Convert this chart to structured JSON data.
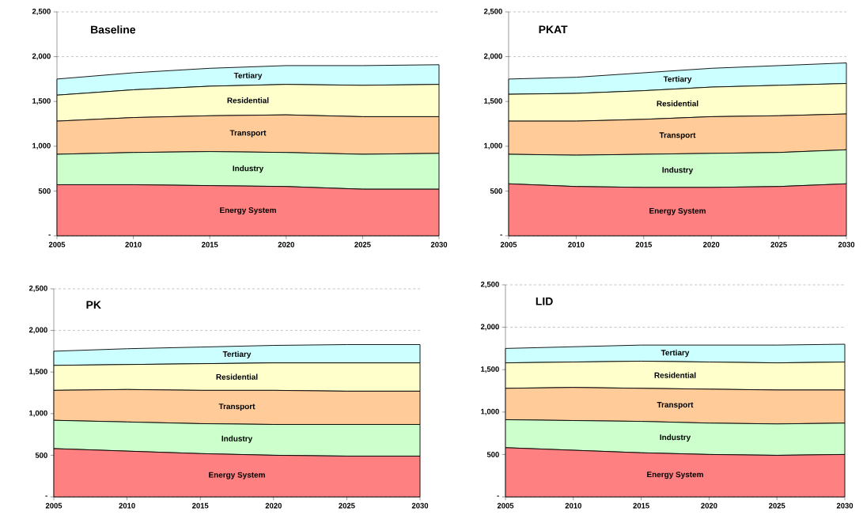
{
  "chart_data": [
    {
      "type": "area",
      "stacked": true,
      "title": "Baseline",
      "x": [
        2005,
        2010,
        2015,
        2020,
        2025,
        2030
      ],
      "xlim": [
        2005,
        2030
      ],
      "xticks": [
        2005,
        2010,
        2015,
        2020,
        2025,
        2030
      ],
      "ylim": [
        0,
        2500
      ],
      "yticks": [
        {
          "value": 0,
          "label": "-"
        },
        {
          "value": 500,
          "label": "500"
        },
        {
          "value": 1000,
          "label": "1,000"
        },
        {
          "value": 1500,
          "label": "1,500"
        },
        {
          "value": 2000,
          "label": "2,000"
        },
        {
          "value": 2500,
          "label": "2,500"
        }
      ],
      "grid": "y",
      "series": [
        {
          "name": "Energy System",
          "color": "#ff8080",
          "values": [
            570,
            570,
            560,
            550,
            520,
            520
          ]
        },
        {
          "name": "Industry",
          "color": "#ccffcc",
          "values": [
            340,
            360,
            380,
            380,
            390,
            400
          ]
        },
        {
          "name": "Transport",
          "color": "#ffcc99",
          "values": [
            370,
            390,
            400,
            420,
            420,
            410
          ]
        },
        {
          "name": "Residential",
          "color": "#ffffcc",
          "values": [
            290,
            310,
            330,
            340,
            350,
            360
          ]
        },
        {
          "name": "Tertiary",
          "color": "#ccffff",
          "values": [
            180,
            190,
            200,
            210,
            220,
            220
          ]
        }
      ]
    },
    {
      "type": "area",
      "stacked": true,
      "title": "PKAT",
      "x": [
        2005,
        2010,
        2015,
        2020,
        2025,
        2030
      ],
      "xlim": [
        2005,
        2030
      ],
      "xticks": [
        2005,
        2010,
        2015,
        2020,
        2025,
        2030
      ],
      "ylim": [
        0,
        2500
      ],
      "yticks": [
        {
          "value": 0,
          "label": "-"
        },
        {
          "value": 500,
          "label": "500"
        },
        {
          "value": 1000,
          "label": "1,000"
        },
        {
          "value": 1500,
          "label": "1,500"
        },
        {
          "value": 2000,
          "label": "2,000"
        },
        {
          "value": 2500,
          "label": "2,500"
        }
      ],
      "grid": "y",
      "series": [
        {
          "name": "Energy System",
          "color": "#ff8080",
          "values": [
            580,
            550,
            540,
            540,
            550,
            580
          ]
        },
        {
          "name": "Industry",
          "color": "#ccffcc",
          "values": [
            330,
            350,
            370,
            380,
            380,
            380
          ]
        },
        {
          "name": "Transport",
          "color": "#ffcc99",
          "values": [
            370,
            380,
            390,
            410,
            410,
            400
          ]
        },
        {
          "name": "Residential",
          "color": "#ffffcc",
          "values": [
            300,
            310,
            320,
            330,
            340,
            340
          ]
        },
        {
          "name": "Tertiary",
          "color": "#ccffff",
          "values": [
            170,
            180,
            200,
            210,
            220,
            230
          ]
        }
      ]
    },
    {
      "type": "area",
      "stacked": true,
      "title": "PK",
      "x": [
        2005,
        2010,
        2015,
        2020,
        2025,
        2030
      ],
      "xlim": [
        2005,
        2030
      ],
      "xticks": [
        2005,
        2010,
        2015,
        2020,
        2025,
        2030
      ],
      "ylim": [
        0,
        2500
      ],
      "yticks": [
        {
          "value": 0,
          "label": "-"
        },
        {
          "value": 500,
          "label": "500"
        },
        {
          "value": 1000,
          "label": "1,000"
        },
        {
          "value": 1500,
          "label": "1,500"
        },
        {
          "value": 2000,
          "label": "2,000"
        },
        {
          "value": 2500,
          "label": "2,500"
        }
      ],
      "grid": "y",
      "series": [
        {
          "name": "Energy System",
          "color": "#ff8080",
          "values": [
            580,
            550,
            520,
            500,
            490,
            490
          ]
        },
        {
          "name": "Industry",
          "color": "#ccffcc",
          "values": [
            340,
            350,
            360,
            370,
            380,
            380
          ]
        },
        {
          "name": "Transport",
          "color": "#ffcc99",
          "values": [
            360,
            390,
            400,
            410,
            400,
            400
          ]
        },
        {
          "name": "Residential",
          "color": "#ffffcc",
          "values": [
            300,
            300,
            320,
            330,
            340,
            340
          ]
        },
        {
          "name": "Tertiary",
          "color": "#ccffff",
          "values": [
            170,
            190,
            200,
            210,
            220,
            220
          ]
        }
      ]
    },
    {
      "type": "area",
      "stacked": true,
      "title": "LID",
      "x": [
        2005,
        2010,
        2015,
        2020,
        2025,
        2030
      ],
      "xlim": [
        2005,
        2030
      ],
      "xticks": [
        2005,
        2010,
        2015,
        2020,
        2025,
        2030
      ],
      "ylim": [
        0,
        2500
      ],
      "yticks": [
        {
          "value": 0,
          "label": "-"
        },
        {
          "value": 500,
          "label": "500"
        },
        {
          "value": 1000,
          "label": "1,000"
        },
        {
          "value": 1500,
          "label": "1,500"
        },
        {
          "value": 2000,
          "label": "2,000"
        },
        {
          "value": 2500,
          "label": "2,500"
        }
      ],
      "grid": "y",
      "series": [
        {
          "name": "Energy System",
          "color": "#ff8080",
          "values": [
            580,
            550,
            520,
            500,
            490,
            500
          ]
        },
        {
          "name": "Industry",
          "color": "#ccffcc",
          "values": [
            330,
            350,
            370,
            370,
            370,
            370
          ]
        },
        {
          "name": "Transport",
          "color": "#ffcc99",
          "values": [
            370,
            390,
            390,
            400,
            400,
            390
          ]
        },
        {
          "name": "Residential",
          "color": "#ffffcc",
          "values": [
            300,
            300,
            320,
            320,
            320,
            330
          ]
        },
        {
          "name": "Tertiary",
          "color": "#ccffff",
          "values": [
            170,
            180,
            190,
            200,
            210,
            210
          ]
        }
      ]
    }
  ]
}
